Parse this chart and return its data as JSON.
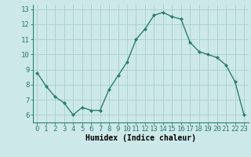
{
  "x": [
    0,
    1,
    2,
    3,
    4,
    5,
    6,
    7,
    8,
    9,
    10,
    11,
    12,
    13,
    14,
    15,
    16,
    17,
    18,
    19,
    20,
    21,
    22,
    23
  ],
  "y": [
    8.8,
    7.9,
    7.2,
    6.8,
    6.0,
    6.5,
    6.3,
    6.3,
    7.7,
    8.6,
    9.5,
    11.0,
    11.7,
    12.6,
    12.8,
    12.5,
    12.35,
    10.8,
    10.2,
    10.0,
    9.8,
    9.3,
    8.2,
    6.0
  ],
  "line_color": "#2e7d6e",
  "marker": "D",
  "marker_size": 2.0,
  "line_width": 1.0,
  "bg_color": "#cce8e8",
  "grid_color": "#aacece",
  "xlabel": "Humidex (Indice chaleur)",
  "xlabel_fontsize": 7,
  "tick_fontsize": 6.5,
  "xlim": [
    -0.5,
    23.5
  ],
  "ylim": [
    5.5,
    13.3
  ],
  "yticks": [
    6,
    7,
    8,
    9,
    10,
    11,
    12,
    13
  ],
  "xticks": [
    0,
    1,
    2,
    3,
    4,
    5,
    6,
    7,
    8,
    9,
    10,
    11,
    12,
    13,
    14,
    15,
    16,
    17,
    18,
    19,
    20,
    21,
    22,
    23
  ]
}
